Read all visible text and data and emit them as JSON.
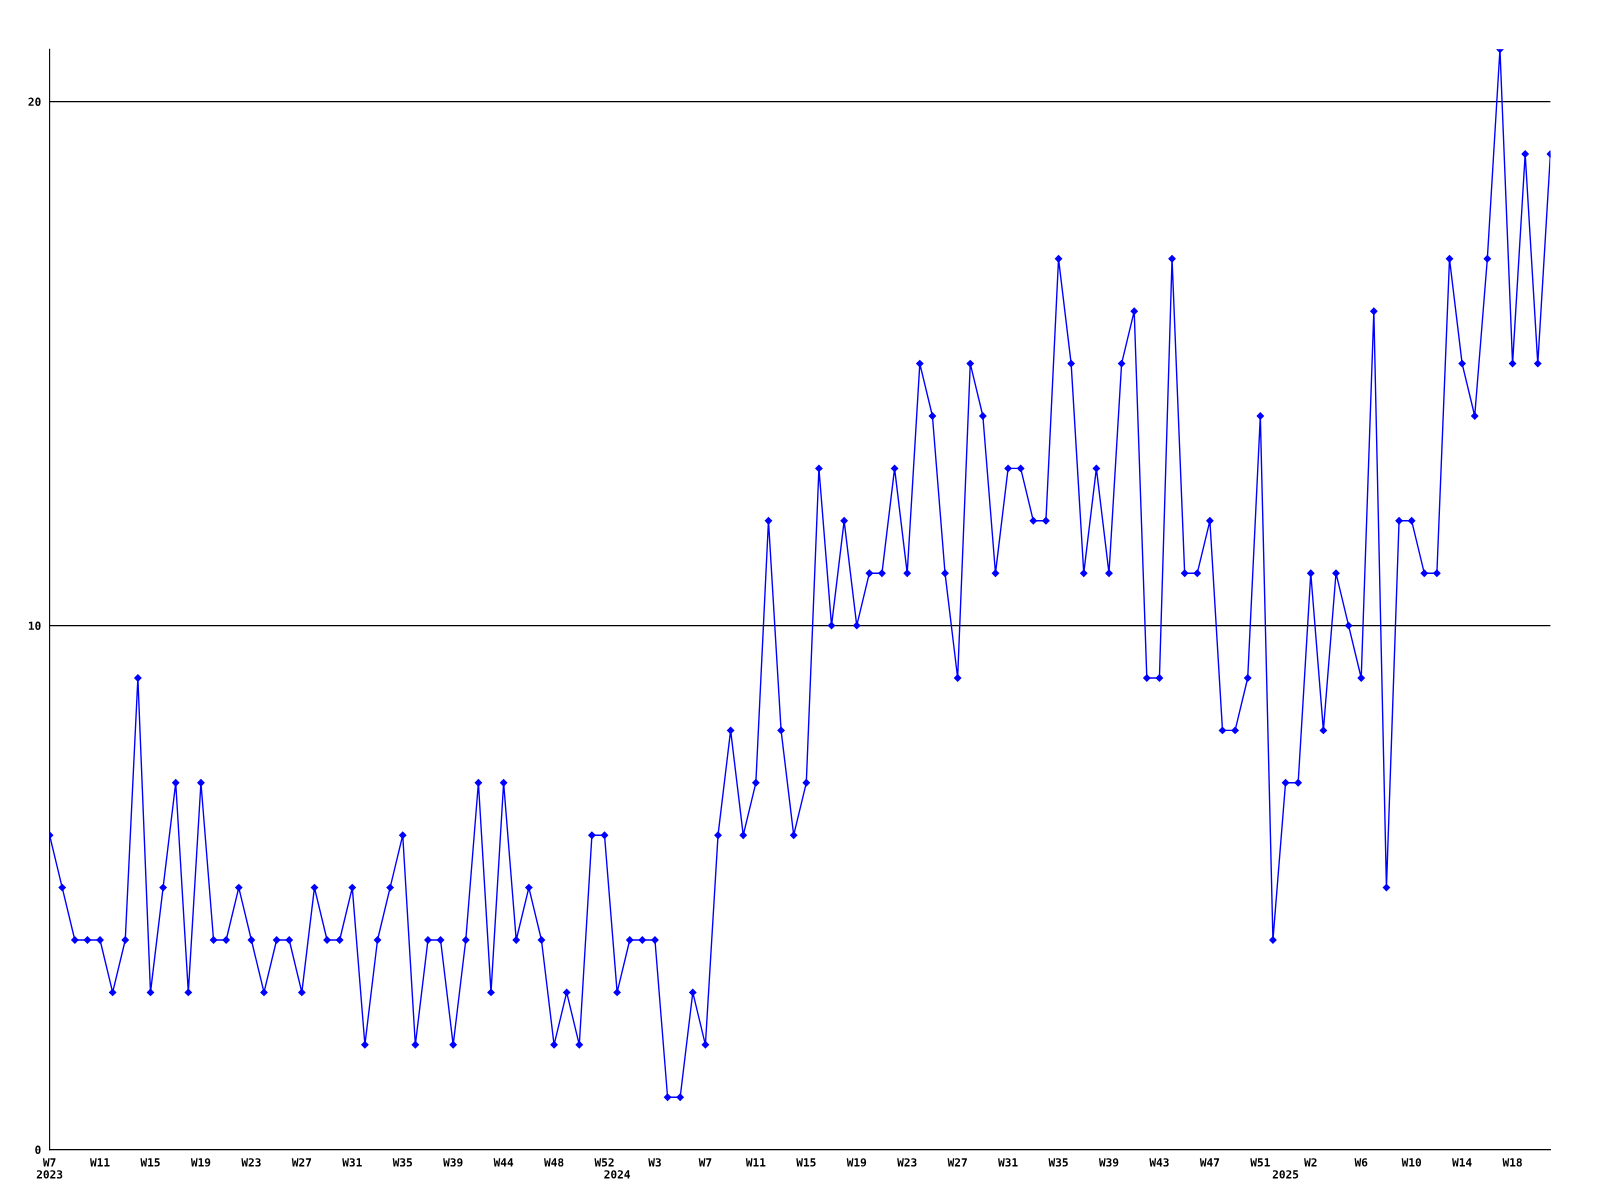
{
  "chart_data": {
    "type": "line",
    "categories": [
      "W7\n2023",
      null,
      null,
      null,
      "W11",
      null,
      null,
      null,
      "W15",
      null,
      null,
      null,
      "W19",
      null,
      null,
      null,
      "W23",
      null,
      null,
      null,
      "W27",
      null,
      null,
      null,
      "W31",
      null,
      null,
      null,
      "W35",
      null,
      null,
      null,
      "W39",
      null,
      null,
      null,
      "W44",
      null,
      null,
      null,
      "W48",
      null,
      null,
      null,
      "W52",
      "\n2024",
      null,
      null,
      "W3",
      null,
      null,
      null,
      "W7",
      null,
      null,
      null,
      "W11",
      null,
      null,
      null,
      "W15",
      null,
      null,
      null,
      "W19",
      null,
      null,
      null,
      "W23",
      null,
      null,
      null,
      "W27",
      null,
      null,
      null,
      "W31",
      null,
      null,
      null,
      "W35",
      null,
      null,
      null,
      "W39",
      null,
      null,
      null,
      "W43",
      null,
      null,
      null,
      "W47",
      null,
      null,
      null,
      "W51",
      null,
      "\n2025",
      null,
      "W2",
      null,
      null,
      null,
      "W6",
      null,
      null,
      null,
      "W10",
      null,
      null,
      null,
      "W14",
      null,
      null,
      null,
      "W18",
      null,
      null,
      null
    ],
    "series": [
      {
        "color": "#0000ff",
        "values": [
          6,
          5,
          4,
          4,
          4,
          3,
          4,
          9,
          3,
          5,
          7,
          3,
          7,
          4,
          4,
          5,
          4,
          3,
          4,
          4,
          3,
          5,
          4,
          4,
          5,
          2,
          4,
          5,
          6,
          2,
          4,
          4,
          2,
          4,
          7,
          3,
          7,
          4,
          5,
          4,
          2,
          3,
          2,
          6,
          6,
          3,
          4,
          4,
          4,
          1,
          1,
          3,
          2,
          6,
          8,
          6,
          7,
          12,
          8,
          6,
          7,
          13,
          10,
          12,
          10,
          11,
          11,
          13,
          11,
          15,
          14,
          11,
          9,
          15,
          14,
          11,
          13,
          13,
          12,
          12,
          17,
          15,
          11,
          13,
          11,
          15,
          16,
          9,
          9,
          17,
          11,
          11,
          12,
          8,
          8,
          9,
          14,
          4,
          7,
          7,
          11,
          8,
          11,
          10,
          9,
          16,
          5,
          12,
          12,
          11,
          11,
          17,
          15,
          14,
          17,
          21,
          15,
          19,
          15,
          19
        ]
      }
    ],
    "ylim": [
      0,
      21
    ],
    "yticks": [
      0,
      10,
      20
    ],
    "grid": "y",
    "legend": false,
    "marker": "diamond",
    "line_style": "solid"
  }
}
